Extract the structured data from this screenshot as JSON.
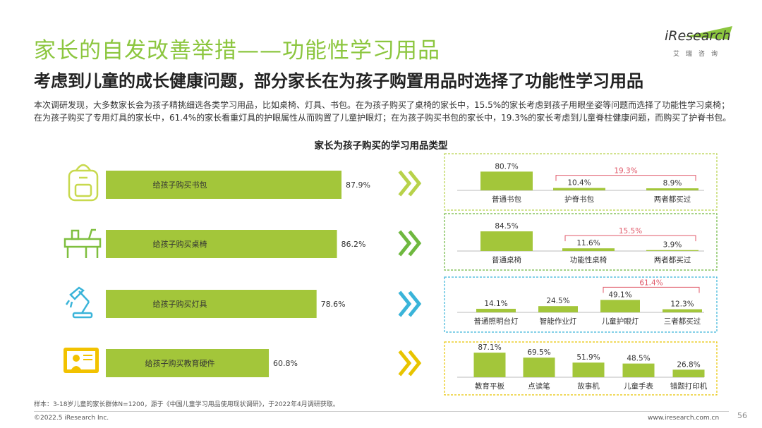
{
  "header": {
    "title": "家长的自发改善举措——功能性学习用品",
    "subtitle": "考虑到儿童的成长健康问题，部分家长在为孩子购置用品时选择了功能性学习用品",
    "intro": "本次调研发现，大多数家长会为孩子精挑细选各类学习用品，比如桌椅、灯具、书包。在为孩子购买了桌椅的家长中，15.5%的家长考虑到孩子用眼坐姿等问题而选择了功能性学习桌椅；在为孩子购买了专用灯具的家长中，61.4%的家长看重灯具的护眼属性从而购置了儿童护眼灯；在为孩子购买书包的家长中，19.3%的家长考虑到儿童脊柱健康问题，而购买了护脊书包。"
  },
  "logo": {
    "main": "iResearch",
    "sub": "艾瑞咨询"
  },
  "footer": {
    "footnote": "样本：3-18岁儿童的家长群体N=1200，源于《中国儿童学习用品使用现状调研》，于2022年4月调研获取。",
    "copyright": "©2022.5 iResearch Inc.",
    "website": "www.iresearch.com.cn",
    "page_number": "56"
  },
  "colors": {
    "bar": "#a3c63a",
    "title": "#8cc63f",
    "icon_yellow": "#c8d94e",
    "icon_green": "#7fbf3f",
    "icon_blue": "#3ab4d9",
    "icon_yellow2": "#f2c200",
    "bracket": "#e05a6a"
  },
  "chart_data": [
    {
      "type": "bar",
      "orientation": "horizontal",
      "title": "家长为孩子购买的学习用品类型",
      "categories": [
        "给孩子购买书包",
        "给孩子购买桌椅",
        "给孩子购买灯具",
        "给孩子购买教育硬件"
      ],
      "values": [
        87.9,
        86.2,
        78.6,
        60.8
      ],
      "value_labels": [
        "87.9%",
        "86.2%",
        "78.6%",
        "60.8%"
      ],
      "icons": [
        "backpack-icon",
        "desk-icon",
        "desk-lamp-icon",
        "tablet-icon"
      ],
      "xlim": [
        0,
        100
      ]
    },
    {
      "type": "bar",
      "categories": [
        "普通书包",
        "护脊书包",
        "两者都买过"
      ],
      "values": [
        80.7,
        10.4,
        8.9
      ],
      "value_labels": [
        "80.7%",
        "10.4%",
        "8.9%"
      ],
      "bracket_label": "19.3%",
      "box_color": "#b8d24a"
    },
    {
      "type": "bar",
      "categories": [
        "普通桌椅",
        "功能性桌椅",
        "两者都买过"
      ],
      "values": [
        84.5,
        11.6,
        3.9
      ],
      "value_labels": [
        "84.5%",
        "11.6%",
        "3.9%"
      ],
      "bracket_label": "15.5%",
      "box_color": "#6fb83f"
    },
    {
      "type": "bar",
      "categories": [
        "普通照明台灯",
        "智能作业灯",
        "儿童护眼灯",
        "三者都买过"
      ],
      "values": [
        14.1,
        24.5,
        49.1,
        12.3
      ],
      "value_labels": [
        "14.1%",
        "24.5%",
        "49.1%",
        "12.3%"
      ],
      "bracket_label": "61.4%",
      "box_color": "#3ab4d9"
    },
    {
      "type": "bar",
      "categories": [
        "教育平板",
        "点读笔",
        "故事机",
        "儿童手表",
        "错题打印机"
      ],
      "values": [
        87.1,
        69.5,
        51.9,
        48.5,
        26.8
      ],
      "value_labels": [
        "87.1%",
        "69.5%",
        "51.9%",
        "48.5%",
        "26.8%"
      ],
      "box_color": "#e8c400"
    }
  ]
}
